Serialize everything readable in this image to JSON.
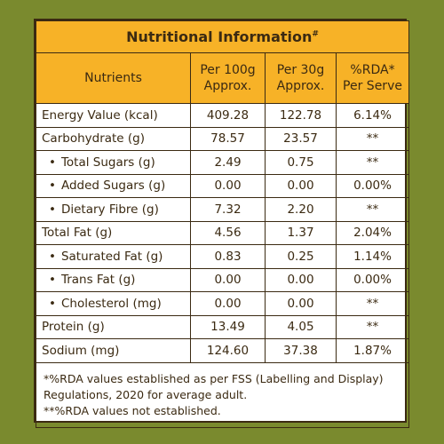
{
  "title": "Nutritional Information",
  "title_mark": "#",
  "headers": [
    "Nutrients",
    "Per 100g Approx.",
    "Per 30g Approx.",
    "%RDA* Per Serve"
  ],
  "header_lines": [
    [
      "Nutrients"
    ],
    [
      "Per 100g",
      "Approx."
    ],
    [
      "Per 30g",
      "Approx."
    ],
    [
      "%RDA*",
      "Per Serve"
    ]
  ],
  "rows": [
    {
      "name": "Energy Value (kcal)",
      "sub": false,
      "per100": "409.28",
      "per30": "122.78",
      "rda": "6.14%"
    },
    {
      "name": "Carbohydrate (g)",
      "sub": false,
      "per100": "78.57",
      "per30": "23.57",
      "rda": "**"
    },
    {
      "name": "Total Sugars (g)",
      "sub": true,
      "per100": "2.49",
      "per30": "0.75",
      "rda": "**"
    },
    {
      "name": "Added Sugars (g)",
      "sub": true,
      "per100": "0.00",
      "per30": "0.00",
      "rda": "0.00%"
    },
    {
      "name": "Dietary Fibre (g)",
      "sub": true,
      "per100": "7.32",
      "per30": "2.20",
      "rda": "**"
    },
    {
      "name": "Total Fat (g)",
      "sub": false,
      "per100": "4.56",
      "per30": "1.37",
      "rda": "2.04%"
    },
    {
      "name": "Saturated Fat (g)",
      "sub": true,
      "per100": "0.83",
      "per30": "0.25",
      "rda": "1.14%"
    },
    {
      "name": "Trans Fat (g)",
      "sub": true,
      "per100": "0.00",
      "per30": "0.00",
      "rda": "0.00%"
    },
    {
      "name": "Cholesterol (mg)",
      "sub": true,
      "per100": "0.00",
      "per30": "0.00",
      "rda": "**"
    },
    {
      "name": "Protein (g)",
      "sub": false,
      "per100": "13.49",
      "per30": "4.05",
      "rda": "**"
    },
    {
      "name": "Sodium (mg)",
      "sub": false,
      "per100": "124.60",
      "per30": "37.38",
      "rda": "1.87%"
    }
  ],
  "footnotes": [
    "*%RDA values established as per FSS (Labelling and Display) Regulations, 2020 for average adult.",
    "**%RDA values not established."
  ],
  "colors": {
    "background": "#7a8a2e",
    "header": "#f7b227",
    "border": "#3b2a12",
    "text": "#3b2a12"
  }
}
